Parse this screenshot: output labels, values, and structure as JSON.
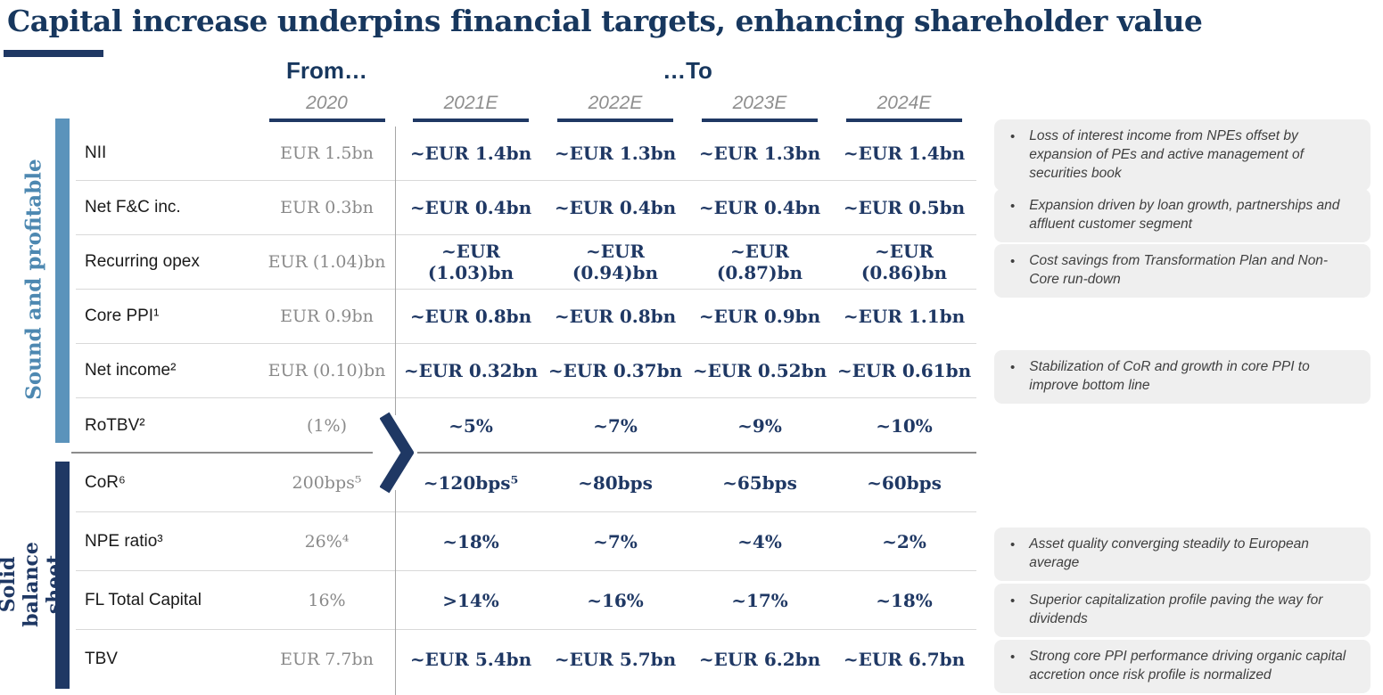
{
  "title": "Capital increase underpins financial targets, enhancing shareholder value",
  "header": {
    "from_label": "From…",
    "to_label": "…To",
    "columns": [
      "2020",
      "2021E",
      "2022E",
      "2023E",
      "2024E"
    ]
  },
  "accent_colors": {
    "navy": "#1f3864",
    "light_blue_bar": "#5b93bb",
    "light_blue_text": "#4d88b1",
    "title_navy": "#17375e"
  },
  "sections": [
    {
      "side_label": "Sound and profitable",
      "rows": [
        {
          "label": "NII",
          "from": "EUR 1.5bn",
          "to": [
            "~EUR 1.4bn",
            "~EUR 1.3bn",
            "~EUR 1.3bn",
            "~EUR 1.4bn"
          ]
        },
        {
          "label": "Net F&C inc.",
          "from": "EUR 0.3bn",
          "to": [
            "~EUR 0.4bn",
            "~EUR 0.4bn",
            "~EUR 0.4bn",
            "~EUR 0.5bn"
          ]
        },
        {
          "label": "Recurring opex",
          "from": "EUR (1.04)bn",
          "to": [
            "~EUR (1.03)bn",
            "~EUR (0.94)bn",
            "~EUR (0.87)bn",
            "~EUR (0.86)bn"
          ]
        },
        {
          "label": "Core PPI¹",
          "from": "EUR 0.9bn",
          "to": [
            "~EUR 0.8bn",
            "~EUR 0.8bn",
            "~EUR 0.9bn",
            "~EUR 1.1bn"
          ]
        },
        {
          "label": "Net income²",
          "from": "EUR (0.10)bn",
          "to": [
            "~EUR 0.32bn",
            "~EUR 0.37bn",
            "~EUR 0.52bn",
            "~EUR 0.61bn"
          ]
        },
        {
          "label": "RoTBV²",
          "from": "(1%)",
          "to": [
            "~5%",
            "~7%",
            "~9%",
            "~10%"
          ]
        }
      ]
    },
    {
      "side_label": "Solid balance sheet",
      "rows": [
        {
          "label": "CoR⁶",
          "from": "200bps⁵",
          "to": [
            "~120bps⁵",
            "~80bps",
            "~65bps",
            "~60bps"
          ]
        },
        {
          "label": "NPE ratio³",
          "from": "26%⁴",
          "to": [
            "~18%",
            "~7%",
            "~4%",
            "~2%"
          ]
        },
        {
          "label": "FL Total Capital",
          "from": "16%",
          "to": [
            ">14%",
            "~16%",
            "~17%",
            "~18%"
          ]
        },
        {
          "label": "TBV",
          "from": "EUR 7.7bn",
          "to": [
            "~EUR 5.4bn",
            "~EUR 5.7bn",
            "~EUR 6.2bn",
            "~EUR 6.7bn"
          ]
        }
      ]
    }
  ],
  "callouts": [
    "Loss of interest income from NPEs offset by expansion of PEs and active management of securities book",
    "Expansion driven by loan growth, partnerships and affluent customer segment",
    "Cost savings from Transformation Plan and Non-Core run-down",
    "Stabilization of CoR and growth in core PPI to improve bottom line",
    "Asset quality converging steadily to European average",
    "Superior capitalization profile paving the way for dividends",
    "Strong core PPI performance driving organic capital accretion once risk profile is normalized"
  ]
}
